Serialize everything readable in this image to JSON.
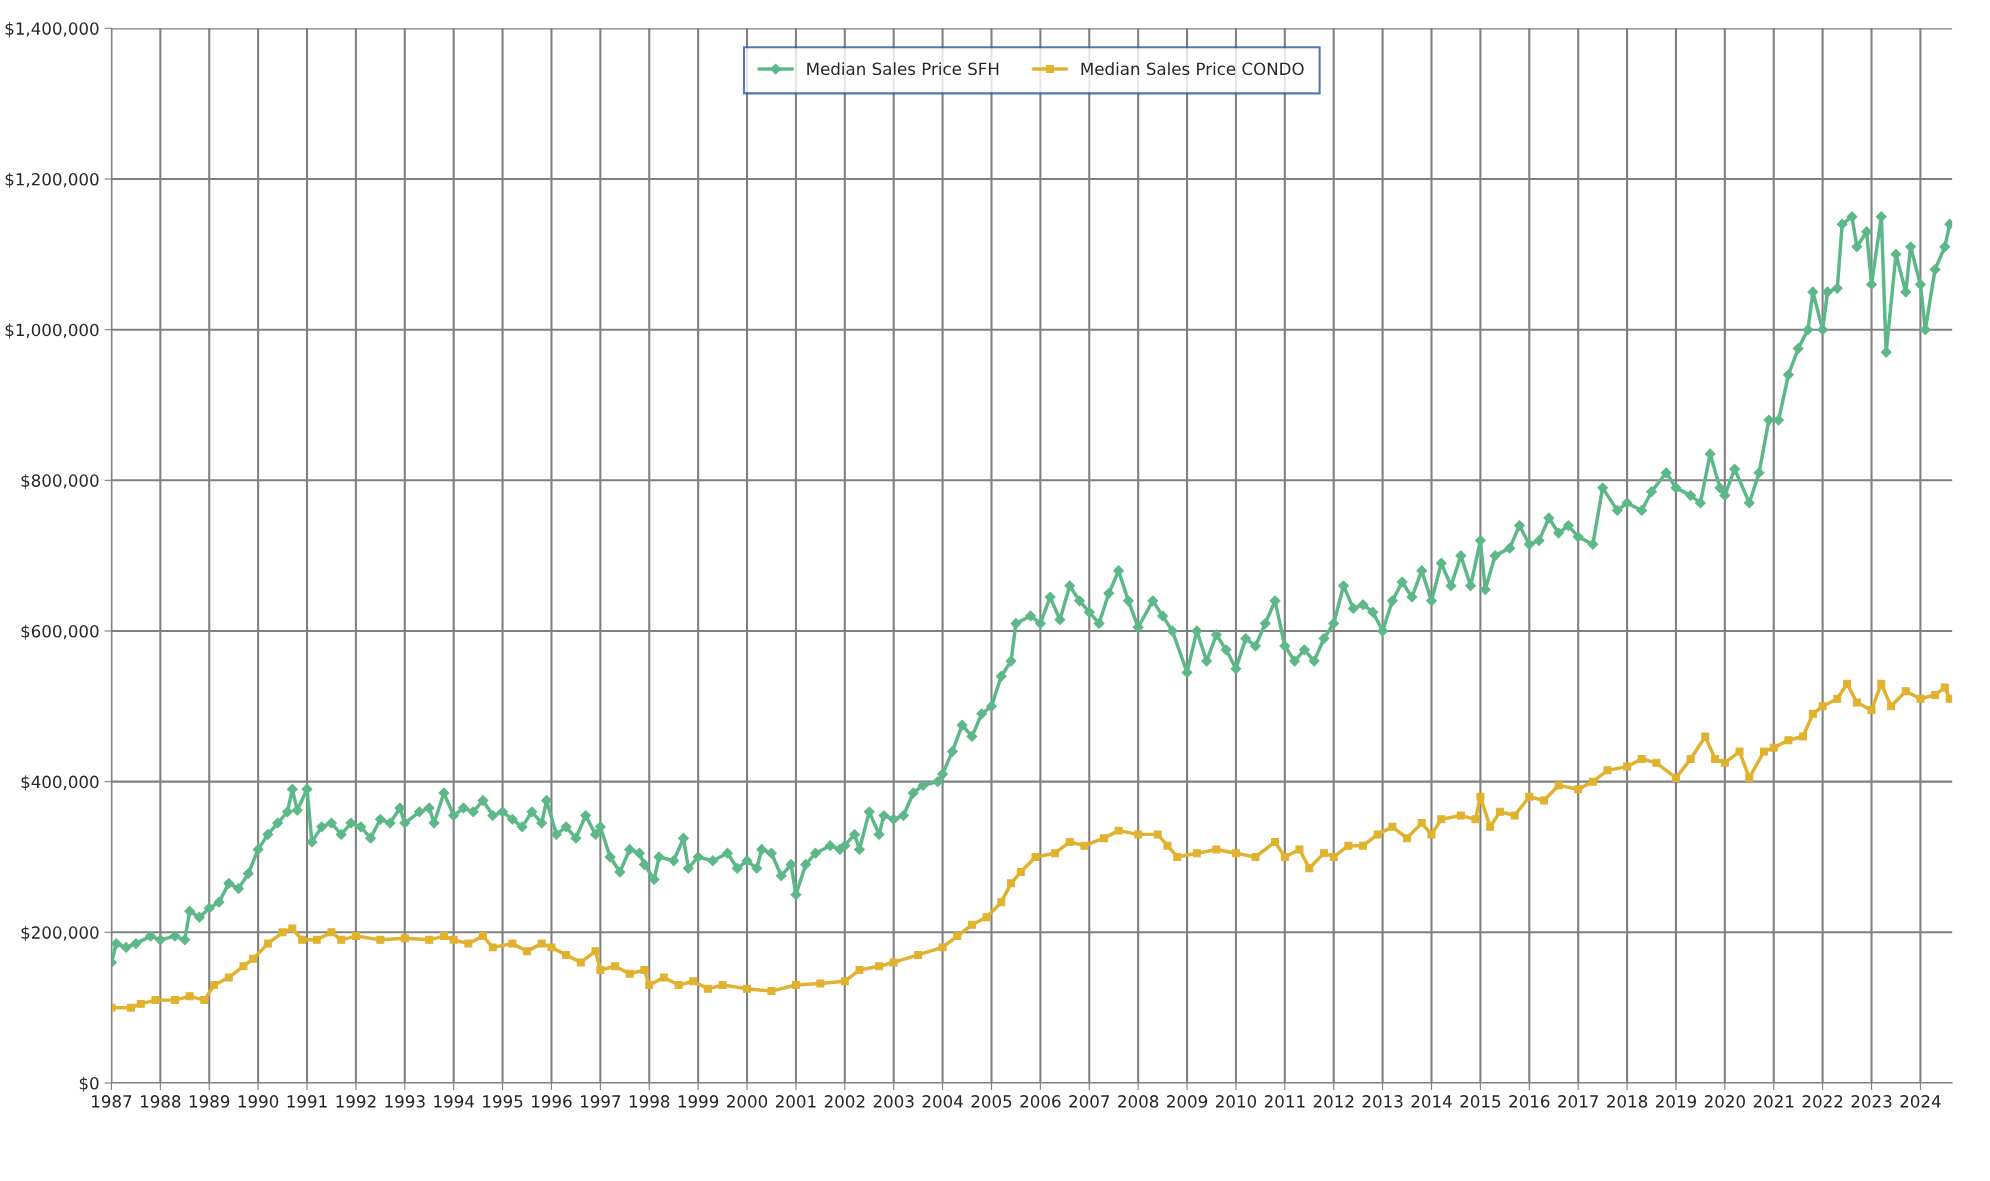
{
  "chart_data": {
    "type": "line",
    "grid": true,
    "legend": "top",
    "line_style": "solid",
    "xlim": [
      1987,
      2024.65
    ],
    "xticks": [
      1987,
      1988,
      1989,
      1990,
      1991,
      1992,
      1993,
      1994,
      1995,
      1996,
      1997,
      1998,
      1999,
      2000,
      2001,
      2002,
      2003,
      2004,
      2005,
      2006,
      2007,
      2008,
      2009,
      2010,
      2011,
      2012,
      2013,
      2014,
      2015,
      2016,
      2017,
      2018,
      2019,
      2020,
      2021,
      2022,
      2023,
      2024
    ],
    "ylim": [
      0,
      1400000
    ],
    "yticks": [
      {
        "value": 0,
        "label": "$0"
      },
      {
        "value": 200000,
        "label": "$200,000"
      },
      {
        "value": 400000,
        "label": "$400,000"
      },
      {
        "value": 600000,
        "label": "$600,000"
      },
      {
        "value": 800000,
        "label": "$800,000"
      },
      {
        "value": 1000000,
        "label": "$1,000,000"
      },
      {
        "value": 1200000,
        "label": "$1,200,000"
      },
      {
        "value": 1400000,
        "label": "$1,400,000"
      }
    ],
    "series": [
      {
        "name": "Median Sales Price SFH",
        "color": "#5db888",
        "marker": "diamond",
        "x": [
          1987.0,
          1987.1,
          1987.3,
          1987.5,
          1987.8,
          1988.0,
          1988.3,
          1988.5,
          1988.6,
          1988.8,
          1989.0,
          1989.2,
          1989.4,
          1989.6,
          1989.8,
          1990.0,
          1990.2,
          1990.4,
          1990.6,
          1990.7,
          1990.8,
          1991.0,
          1991.1,
          1991.3,
          1991.5,
          1991.7,
          1991.9,
          1992.1,
          1992.3,
          1992.5,
          1992.7,
          1992.9,
          1993.0,
          1993.3,
          1993.5,
          1993.6,
          1993.8,
          1994.0,
          1994.2,
          1994.4,
          1994.6,
          1994.8,
          1995.0,
          1995.2,
          1995.4,
          1995.6,
          1995.8,
          1995.9,
          1996.1,
          1996.3,
          1996.5,
          1996.7,
          1996.9,
          1997.0,
          1997.2,
          1997.4,
          1997.6,
          1997.8,
          1997.9,
          1998.1,
          1998.2,
          1998.5,
          1998.7,
          1998.8,
          1999.0,
          1999.3,
          1999.6,
          1999.8,
          2000.0,
          2000.2,
          2000.3,
          2000.5,
          2000.7,
          2000.9,
          2001.0,
          2001.2,
          2001.4,
          2001.7,
          2001.9,
          2002.0,
          2002.2,
          2002.3,
          2002.5,
          2002.7,
          2002.8,
          2003.0,
          2003.2,
          2003.4,
          2003.6,
          2003.9,
          2004.0,
          2004.2,
          2004.4,
          2004.6,
          2004.8,
          2005.0,
          2005.2,
          2005.4,
          2005.5,
          2005.8,
          2006.0,
          2006.2,
          2006.4,
          2006.6,
          2006.8,
          2007.0,
          2007.2,
          2007.4,
          2007.6,
          2007.8,
          2008.0,
          2008.3,
          2008.5,
          2008.7,
          2009.0,
          2009.2,
          2009.4,
          2009.6,
          2009.8,
          2010.0,
          2010.2,
          2010.4,
          2010.6,
          2010.8,
          2011.0,
          2011.2,
          2011.4,
          2011.6,
          2011.8,
          2012.0,
          2012.2,
          2012.4,
          2012.6,
          2012.8,
          2013.0,
          2013.2,
          2013.4,
          2013.6,
          2013.8,
          2014.0,
          2014.2,
          2014.4,
          2014.6,
          2014.8,
          2015.0,
          2015.1,
          2015.3,
          2015.6,
          2015.8,
          2016.0,
          2016.2,
          2016.4,
          2016.6,
          2016.8,
          2017.0,
          2017.3,
          2017.5,
          2017.8,
          2018.0,
          2018.3,
          2018.5,
          2018.8,
          2019.0,
          2019.3,
          2019.5,
          2019.7,
          2019.9,
          2020.0,
          2020.2,
          2020.5,
          2020.7,
          2020.9,
          2021.1,
          2021.3,
          2021.5,
          2021.7,
          2021.8,
          2022.0,
          2022.1,
          2022.3,
          2022.4,
          2022.6,
          2022.7,
          2022.9,
          2023.0,
          2023.2,
          2023.3,
          2023.5,
          2023.7,
          2023.8,
          2024.0,
          2024.1,
          2024.3,
          2024.5,
          2024.6
        ],
        "values": [
          160000,
          185000,
          180000,
          185000,
          195000,
          190000,
          195000,
          190000,
          228000,
          220000,
          232000,
          240000,
          265000,
          258000,
          278000,
          310000,
          330000,
          345000,
          360000,
          390000,
          362000,
          390000,
          320000,
          340000,
          345000,
          330000,
          345000,
          340000,
          325000,
          350000,
          345000,
          365000,
          345000,
          360000,
          365000,
          345000,
          385000,
          355000,
          365000,
          360000,
          375000,
          355000,
          360000,
          350000,
          340000,
          360000,
          345000,
          375000,
          330000,
          340000,
          325000,
          355000,
          330000,
          340000,
          300000,
          280000,
          310000,
          305000,
          290000,
          270000,
          300000,
          295000,
          325000,
          285000,
          300000,
          295000,
          305000,
          285000,
          295000,
          285000,
          310000,
          305000,
          275000,
          290000,
          250000,
          290000,
          305000,
          315000,
          310000,
          315000,
          330000,
          310000,
          360000,
          330000,
          355000,
          350000,
          355000,
          385000,
          395000,
          400000,
          410000,
          440000,
          475000,
          460000,
          490000,
          500000,
          540000,
          560000,
          610000,
          620000,
          610000,
          645000,
          615000,
          660000,
          640000,
          625000,
          610000,
          650000,
          680000,
          640000,
          605000,
          640000,
          620000,
          600000,
          545000,
          600000,
          560000,
          595000,
          575000,
          550000,
          590000,
          580000,
          610000,
          640000,
          580000,
          560000,
          575000,
          560000,
          590000,
          610000,
          660000,
          630000,
          635000,
          625000,
          600000,
          640000,
          665000,
          645000,
          680000,
          640000,
          690000,
          660000,
          700000,
          660000,
          720000,
          655000,
          700000,
          710000,
          740000,
          715000,
          720000,
          750000,
          730000,
          740000,
          725000,
          715000,
          790000,
          760000,
          770000,
          760000,
          785000,
          810000,
          790000,
          780000,
          770000,
          835000,
          790000,
          780000,
          815000,
          770000,
          810000,
          880000,
          880000,
          940000,
          975000,
          1000000,
          1050000,
          1000000,
          1050000,
          1055000,
          1140000,
          1150000,
          1110000,
          1130000,
          1060000,
          1150000,
          970000,
          1100000,
          1050000,
          1110000,
          1060000,
          1000000,
          1080000,
          1110000,
          1140000
        ]
      },
      {
        "name": "Median Sales Price CONDO",
        "color": "#e0b22e",
        "marker": "square",
        "x": [
          1987.0,
          1987.4,
          1987.6,
          1987.9,
          1988.3,
          1988.6,
          1988.9,
          1989.1,
          1989.4,
          1989.7,
          1989.9,
          1990.2,
          1990.5,
          1990.7,
          1990.9,
          1991.2,
          1991.5,
          1991.7,
          1992.0,
          1992.5,
          1993.0,
          1993.5,
          1993.8,
          1994.0,
          1994.3,
          1994.6,
          1994.8,
          1995.2,
          1995.5,
          1995.8,
          1996.0,
          1996.3,
          1996.6,
          1996.9,
          1997.0,
          1997.3,
          1997.6,
          1997.9,
          1998.0,
          1998.3,
          1998.6,
          1998.9,
          1999.2,
          1999.5,
          2000.0,
          2000.5,
          2001.0,
          2001.5,
          2002.0,
          2002.3,
          2002.7,
          2003.0,
          2003.5,
          2004.0,
          2004.3,
          2004.6,
          2004.9,
          2005.2,
          2005.4,
          2005.6,
          2005.9,
          2006.3,
          2006.6,
          2006.9,
          2007.3,
          2007.6,
          2008.0,
          2008.4,
          2008.6,
          2008.8,
          2009.2,
          2009.6,
          2010.0,
          2010.4,
          2010.8,
          2011.0,
          2011.3,
          2011.5,
          2011.8,
          2012.0,
          2012.3,
          2012.6,
          2012.9,
          2013.2,
          2013.5,
          2013.8,
          2014.0,
          2014.2,
          2014.6,
          2014.9,
          2015.0,
          2015.2,
          2015.4,
          2015.7,
          2016.0,
          2016.3,
          2016.6,
          2017.0,
          2017.3,
          2017.6,
          2018.0,
          2018.3,
          2018.6,
          2019.0,
          2019.3,
          2019.6,
          2019.8,
          2020.0,
          2020.3,
          2020.5,
          2020.8,
          2021.0,
          2021.3,
          2021.6,
          2021.8,
          2022.0,
          2022.3,
          2022.5,
          2022.7,
          2023.0,
          2023.2,
          2023.4,
          2023.7,
          2024.0,
          2024.3,
          2024.5,
          2024.6
        ],
        "values": [
          100000,
          100000,
          105000,
          110000,
          110000,
          115000,
          110000,
          130000,
          140000,
          155000,
          165000,
          185000,
          200000,
          205000,
          190000,
          190000,
          200000,
          190000,
          195000,
          190000,
          192000,
          190000,
          195000,
          190000,
          185000,
          195000,
          180000,
          185000,
          175000,
          185000,
          180000,
          170000,
          160000,
          175000,
          150000,
          155000,
          145000,
          150000,
          130000,
          140000,
          130000,
          135000,
          125000,
          130000,
          125000,
          122000,
          130000,
          132000,
          135000,
          150000,
          155000,
          160000,
          170000,
          180000,
          195000,
          210000,
          220000,
          240000,
          265000,
          280000,
          300000,
          305000,
          320000,
          315000,
          325000,
          335000,
          330000,
          330000,
          315000,
          300000,
          305000,
          310000,
          305000,
          300000,
          320000,
          300000,
          310000,
          285000,
          305000,
          300000,
          315000,
          315000,
          330000,
          340000,
          325000,
          345000,
          330000,
          350000,
          355000,
          350000,
          380000,
          340000,
          360000,
          355000,
          380000,
          375000,
          395000,
          390000,
          400000,
          415000,
          420000,
          430000,
          425000,
          405000,
          430000,
          460000,
          430000,
          425000,
          440000,
          405000,
          440000,
          445000,
          455000,
          460000,
          490000,
          500000,
          510000,
          530000,
          505000,
          495000,
          530000,
          500000,
          520000,
          510000,
          515000,
          525000,
          510000
        ]
      }
    ]
  }
}
